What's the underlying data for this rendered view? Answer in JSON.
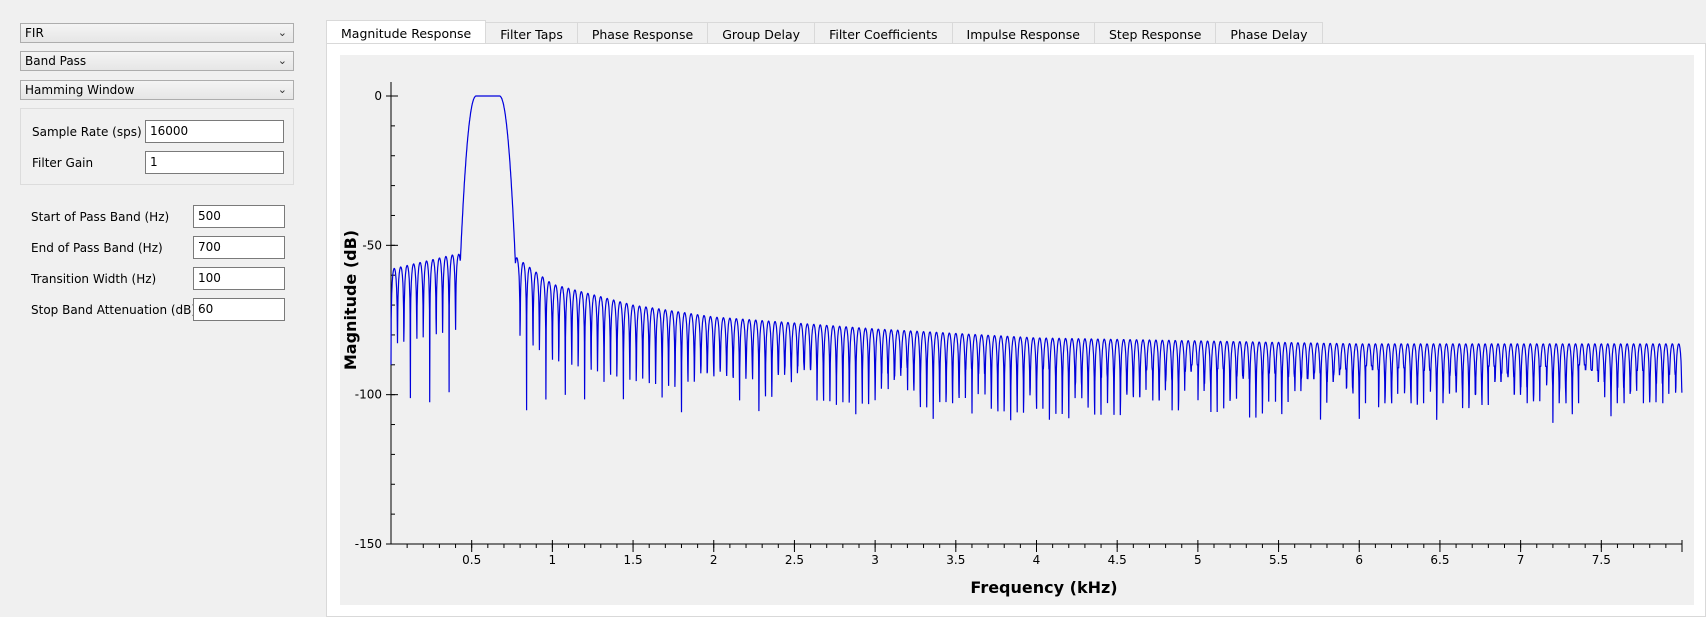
{
  "filter_panel": {
    "filter_type": "FIR",
    "band_type": "Band Pass",
    "window_type": "Hamming Window",
    "sample_rate_label": "Sample Rate (sps)",
    "sample_rate_value": "16000",
    "filter_gain_label": "Filter Gain",
    "filter_gain_value": "1",
    "start_pass_label": "Start of Pass Band (Hz)",
    "start_pass_value": "500",
    "end_pass_label": "End of Pass Band (Hz)",
    "end_pass_value": "700",
    "transition_label": "Transition Width (Hz)",
    "transition_value": "100",
    "stopband_label": "Stop Band Attenuation (dB)",
    "stopband_value": "60"
  },
  "tabs": [
    {
      "label": "Magnitude Response",
      "active": true
    },
    {
      "label": "Filter Taps",
      "active": false
    },
    {
      "label": "Phase Response",
      "active": false
    },
    {
      "label": "Group Delay",
      "active": false
    },
    {
      "label": "Filter Coefficients",
      "active": false
    },
    {
      "label": "Impulse Response",
      "active": false
    },
    {
      "label": "Step Response",
      "active": false
    },
    {
      "label": "Phase Delay",
      "active": false
    }
  ],
  "icons": {
    "dropdown": "chevron-down-icon"
  },
  "colors": {
    "trace": "#0000dd",
    "plot_background": "#f0f0f0"
  },
  "chart_data": {
    "type": "line",
    "title": "",
    "xlabel": "Frequency (kHz)",
    "ylabel": "Magnitude (dB)",
    "xlim": [
      0,
      8
    ],
    "ylim": [
      -150,
      0
    ],
    "xticks": [
      0.5,
      1,
      1.5,
      2,
      2.5,
      3,
      3.5,
      4,
      4.5,
      5,
      5.5,
      6,
      6.5,
      7,
      7.5
    ],
    "xtick_labels": [
      "0.5",
      "1",
      "1.5",
      "2",
      "2.5",
      "3",
      "3.5",
      "4",
      "4.5",
      "5",
      "5.5",
      "6",
      "6.5",
      "7",
      "7.5"
    ],
    "yticks": [
      0,
      -50,
      -100,
      -150
    ],
    "ytick_labels": [
      "0",
      "-50",
      "-100",
      "-150"
    ],
    "grid": false,
    "series": [
      {
        "color": "#0000dd",
        "passband": {
          "start_khz": 0.5,
          "end_khz": 0.7,
          "level_db": 0
        },
        "transition_width_khz": 0.1,
        "sidelobe_spacing_khz": 0.04,
        "sidelobe_envelope": [
          {
            "f": 0.0,
            "db": -58
          },
          {
            "f": 0.4,
            "db": -53
          },
          {
            "f": 0.75,
            "db": -53
          },
          {
            "f": 1.0,
            "db": -63
          },
          {
            "f": 1.5,
            "db": -70
          },
          {
            "f": 2.0,
            "db": -74
          },
          {
            "f": 3.0,
            "db": -78
          },
          {
            "f": 4.0,
            "db": -81
          },
          {
            "f": 5.0,
            "db": -82
          },
          {
            "f": 6.0,
            "db": -83
          },
          {
            "f": 8.0,
            "db": -83
          }
        ],
        "null_depth_db": [
          -90,
          -110
        ]
      }
    ]
  }
}
